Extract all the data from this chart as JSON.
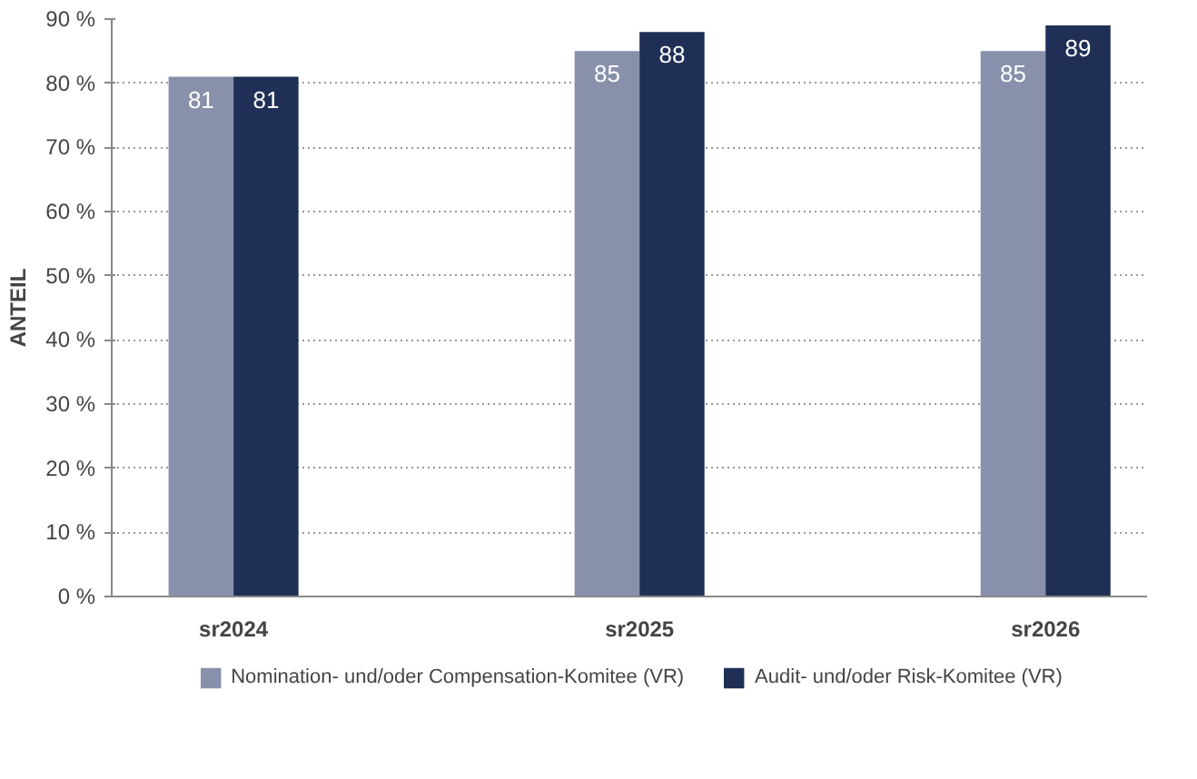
{
  "chart_data": {
    "type": "bar",
    "ylabel": "ANTEIL",
    "categories": [
      "sr2024",
      "sr2025",
      "sr2026"
    ],
    "series": [
      {
        "name": "Nomination- und/oder Compensation-Komitee (VR)",
        "color": "#8890ab",
        "values": [
          81,
          85,
          85
        ]
      },
      {
        "name": "Audit- und/oder Risk-Komitee (VR)",
        "color": "#1f2f55",
        "values": [
          81,
          88,
          89
        ]
      }
    ],
    "ylim": [
      0,
      90
    ],
    "yticks": [
      {
        "value": 0,
        "label": "0 %"
      },
      {
        "value": 10,
        "label": "10 %"
      },
      {
        "value": 20,
        "label": "20 %"
      },
      {
        "value": 30,
        "label": "30 %"
      },
      {
        "value": 40,
        "label": "40 %"
      },
      {
        "value": 50,
        "label": "50 %"
      },
      {
        "value": 60,
        "label": "60 %"
      },
      {
        "value": 70,
        "label": "70 %"
      },
      {
        "value": 80,
        "label": "80 %"
      },
      {
        "value": 90,
        "label": "90 %"
      }
    ],
    "grid": "y",
    "legend": "bottom",
    "data_labels": true
  }
}
